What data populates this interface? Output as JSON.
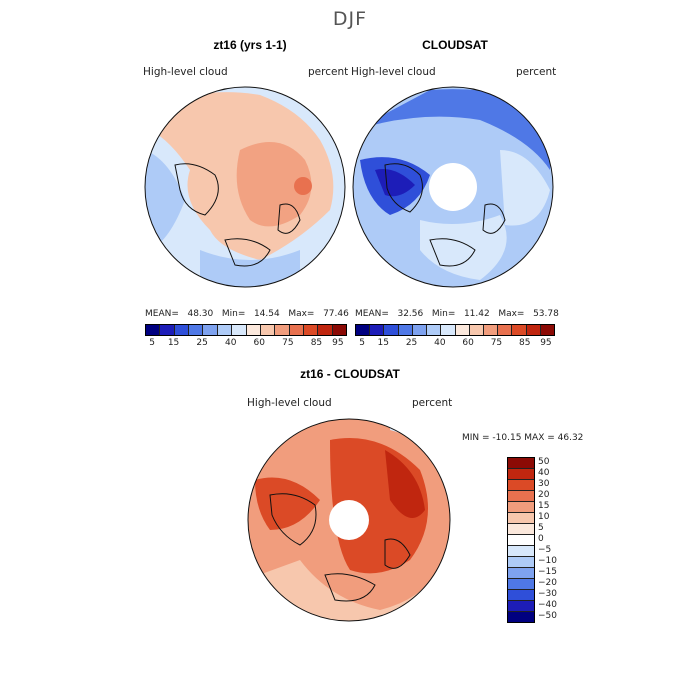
{
  "season": "DJF",
  "panels": [
    {
      "title": "zt16 (yrs 1-1)",
      "left_label": "High-level cloud",
      "right_label": "percent",
      "stats": {
        "mean_label": "MEAN=",
        "mean": "48.30",
        "min_label": "Min=",
        "min": "14.54",
        "max_label": "Max=",
        "max": "77.46"
      }
    },
    {
      "title": "CLOUDSAT",
      "left_label": "High-level cloud",
      "right_label": "percent",
      "stats": {
        "mean_label": "MEAN=",
        "mean": "32.56",
        "min_label": "Min=",
        "min": "11.42",
        "max_label": "Max=",
        "max": "53.78"
      }
    },
    {
      "title": "zt16 - CLOUDSAT",
      "left_label": "High-level cloud",
      "right_label": "percent",
      "stats_text": "MIN = -10.15 MAX =  46.32"
    }
  ],
  "colorbar_abs": {
    "colors": [
      "#000080",
      "#1d1db8",
      "#2f4fd9",
      "#4f78e6",
      "#7ea2ef",
      "#aecbf7",
      "#d8e8fb",
      "#fbe8dc",
      "#f7c7ad",
      "#f19d7d",
      "#e8714f",
      "#db4a26",
      "#c0260f",
      "#8b0a05"
    ],
    "tick_labels": [
      "5",
      "15",
      "25",
      "40",
      "60",
      "75",
      "85",
      "95"
    ]
  },
  "colorbar_diff": {
    "colors": [
      "#8b0a05",
      "#c0260f",
      "#db4a26",
      "#e8714f",
      "#f19d7d",
      "#f7c7ad",
      "#fbe8dc",
      "#ffffff",
      "#d8e8fb",
      "#aecbf7",
      "#7ea2ef",
      "#4f78e6",
      "#2f4fd9",
      "#1d1db8",
      "#000080"
    ],
    "tick_labels": [
      "50",
      "40",
      "30",
      "20",
      "15",
      "10",
      "5",
      "0",
      "−5",
      "−10",
      "−15",
      "−20",
      "−30",
      "−40",
      "−50"
    ]
  }
}
